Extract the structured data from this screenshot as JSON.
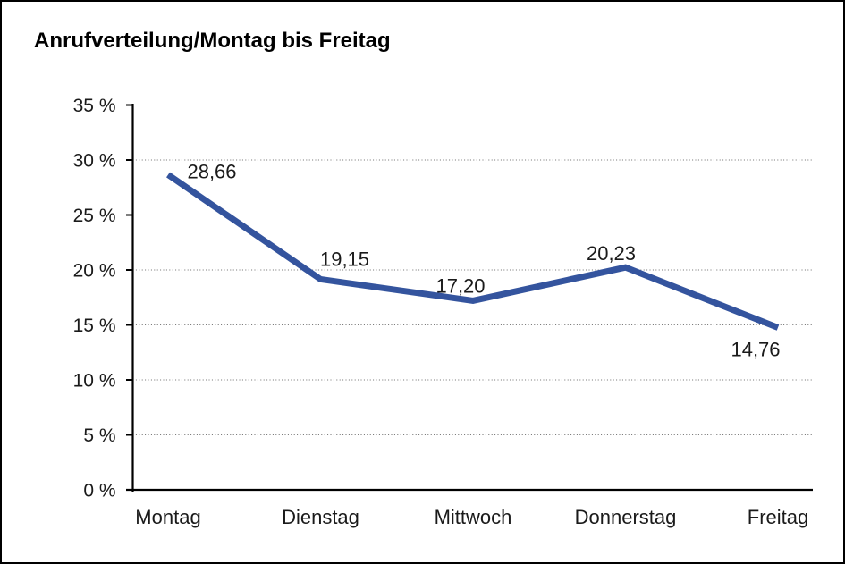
{
  "window": {
    "background_color": "#ffffff",
    "border_color": "#000000"
  },
  "chart_data": {
    "type": "line",
    "title": "Anrufverteilung/Montag bis Freitag",
    "categories": [
      "Montag",
      "Dienstag",
      "Mittwoch",
      "Donnerstag",
      "Freitag"
    ],
    "series": [
      {
        "name": "Anrufverteilung",
        "values": [
          28.66,
          19.15,
          17.2,
          20.23,
          14.76
        ],
        "color": "#34549E"
      }
    ],
    "point_labels": [
      "28,66",
      "19,15",
      "17,20",
      "20,23",
      "14,76"
    ],
    "xlabel": "",
    "ylabel": "",
    "ylim": [
      0,
      35
    ],
    "y_tick_step": 5,
    "y_tick_labels": [
      "0 %",
      "5 %",
      "10 %",
      "15 %",
      "20 %",
      "25 %",
      "30 %",
      "35 %"
    ],
    "grid": "horizontal-dotted",
    "legend": "none",
    "axis_color": "#000000",
    "grid_color": "#6f6f6f",
    "text_color": "#1a1a1a"
  }
}
